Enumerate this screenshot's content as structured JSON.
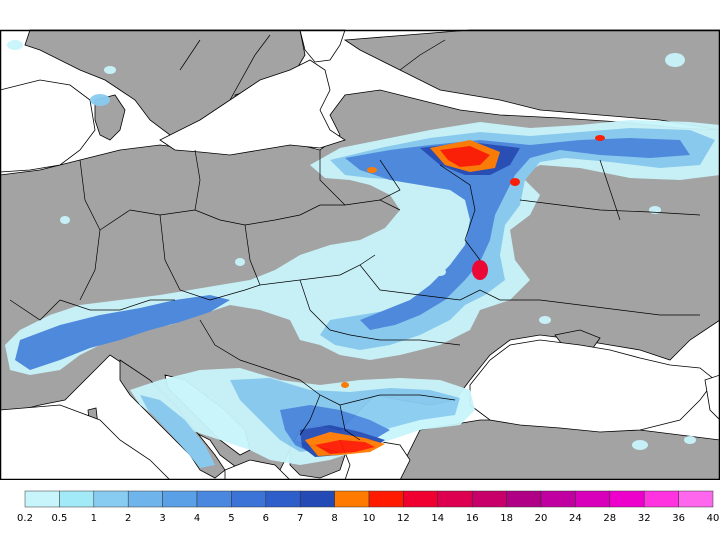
{
  "colors": {
    "land": "#a3a3a3",
    "sea": "#ffffff",
    "border": "#000000",
    "frame": "#000000"
  },
  "legend": {
    "ticks": [
      "0.2",
      "0.5",
      "1",
      "2",
      "3",
      "4",
      "5",
      "6",
      "7",
      "8",
      "10",
      "12",
      "14",
      "16",
      "18",
      "20",
      "24",
      "28",
      "32",
      "36",
      "40"
    ],
    "swatches": [
      "#c8f5fb",
      "#a3eaf8",
      "#88ccf1",
      "#6fb5ec",
      "#5aa0e6",
      "#4a88e0",
      "#3b73d6",
      "#2e5ec9",
      "#244bb5",
      "#ff7a00",
      "#ff1a00",
      "#f00030",
      "#dd0050",
      "#c8006a",
      "#b00085",
      "#c000a0",
      "#d800bb",
      "#ee00cc",
      "#ff33e0",
      "#ff66ee"
    ]
  },
  "precip_levels": {
    "light": "#c8f5fb",
    "low": "#88ccf1",
    "mid": "#4a88e0",
    "high": "#244bb5",
    "orange": "#ff7a00",
    "red": "#ff1a00",
    "crimson": "#f00030"
  }
}
